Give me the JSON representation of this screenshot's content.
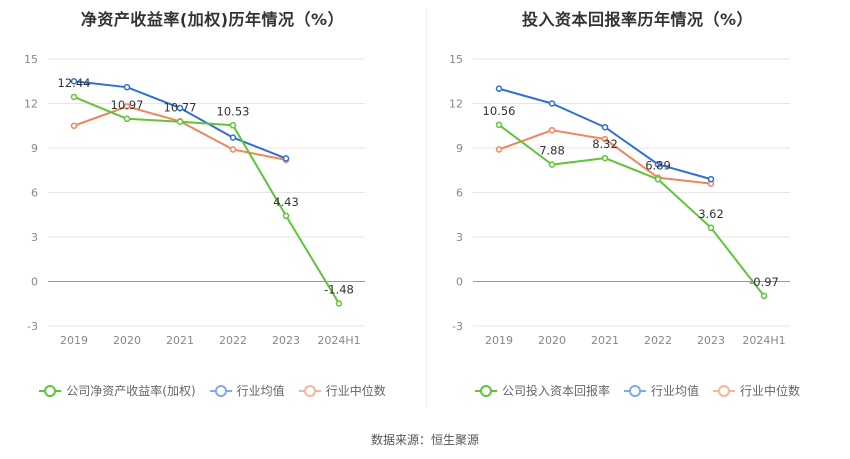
{
  "chart_data": [
    {
      "type": "line",
      "title": "净资产收益率(加权)历年情况（%）",
      "categories": [
        "2019",
        "2020",
        "2021",
        "2022",
        "2023",
        "2024H1"
      ],
      "ylim": [
        -3,
        15
      ],
      "yticks": [
        -3,
        0,
        3,
        6,
        9,
        12,
        15
      ],
      "grid": true,
      "legend_position": "bottom",
      "series": [
        {
          "name": "公司净资产收益率(加权)",
          "color": "#5fc43a",
          "values": [
            12.44,
            10.97,
            10.77,
            10.53,
            4.43,
            -1.48
          ],
          "labels": [
            "12.44",
            "10.97",
            "10.77",
            "10.53",
            "4.43",
            "-1.48"
          ]
        },
        {
          "name": "行业均值",
          "color": "#2f6fd6",
          "values": [
            13.5,
            13.1,
            11.7,
            9.7,
            8.3,
            null
          ]
        },
        {
          "name": "行业中位数",
          "color": "#f0845c",
          "values": [
            10.5,
            11.8,
            10.8,
            8.9,
            8.2,
            null
          ]
        }
      ]
    },
    {
      "type": "line",
      "title": "投入资本回报率历年情况（%）",
      "categories": [
        "2019",
        "2020",
        "2021",
        "2022",
        "2023",
        "2024H1"
      ],
      "ylim": [
        -3,
        15
      ],
      "yticks": [
        -3,
        0,
        3,
        6,
        9,
        12,
        15
      ],
      "grid": true,
      "legend_position": "bottom",
      "series": [
        {
          "name": "公司投入资本回报率",
          "color": "#5fc43a",
          "values": [
            10.56,
            7.88,
            8.32,
            6.89,
            3.62,
            -0.97
          ],
          "labels": [
            "10.56",
            "7.88",
            "8.32",
            "6.89",
            "3.62",
            "-0.97"
          ]
        },
        {
          "name": "行业均值",
          "color": "#2f6fd6",
          "values": [
            13.0,
            12.0,
            10.4,
            7.9,
            6.9,
            null
          ]
        },
        {
          "name": "行业中位数",
          "color": "#f0845c",
          "values": [
            8.9,
            10.2,
            9.6,
            7.0,
            6.6,
            null
          ]
        }
      ]
    }
  ],
  "source": "数据来源：恒生聚源"
}
